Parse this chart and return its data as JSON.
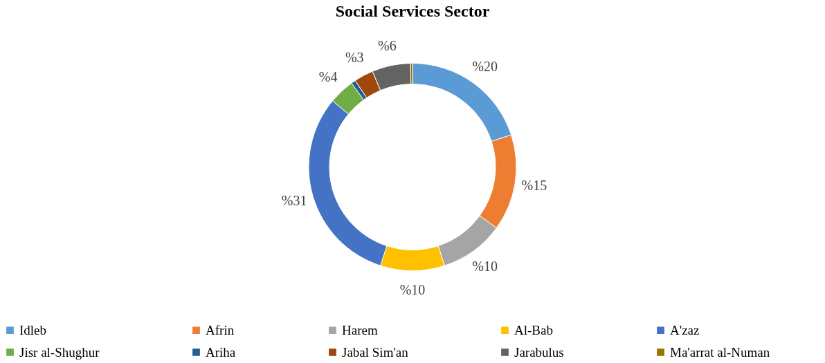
{
  "chart_data": {
    "type": "donut",
    "title": "Social Services Sector",
    "categories": [
      "Idleb",
      "Afrin",
      "Harem",
      "Al-Bab",
      "A'zaz",
      "Jisr al-Shughur",
      "Ariha",
      "Jabal Sim'an",
      "Jarabulus",
      "Ma'arrat al-Numan"
    ],
    "values": [
      20,
      15,
      10,
      10,
      31,
      4,
      0.7,
      3,
      6,
      0.3
    ],
    "value_labels": [
      "%20",
      "%15",
      "%10",
      "%10",
      "%31",
      "%4",
      null,
      "%3",
      "%6",
      null
    ],
    "colors": [
      "#5b9bd5",
      "#ed7d31",
      "#a5a5a5",
      "#ffc000",
      "#4472c4",
      "#70ad47",
      "#255e91",
      "#9e480e",
      "#636363",
      "#997300"
    ],
    "legend": "bottom"
  }
}
